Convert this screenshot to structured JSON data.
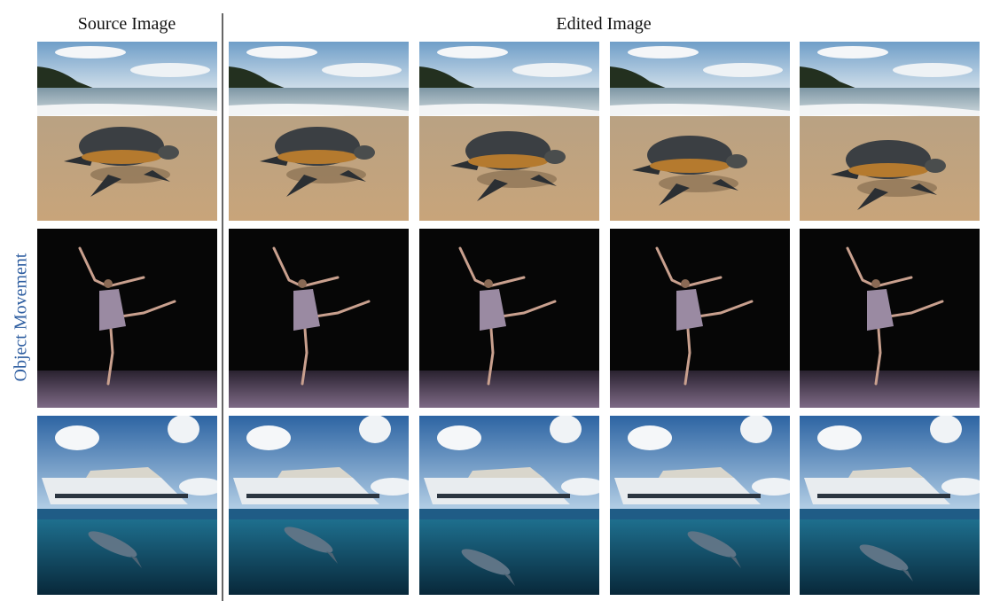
{
  "header": {
    "source": "Source Image",
    "edited": "Edited Image"
  },
  "row_label": "Object Movement"
}
